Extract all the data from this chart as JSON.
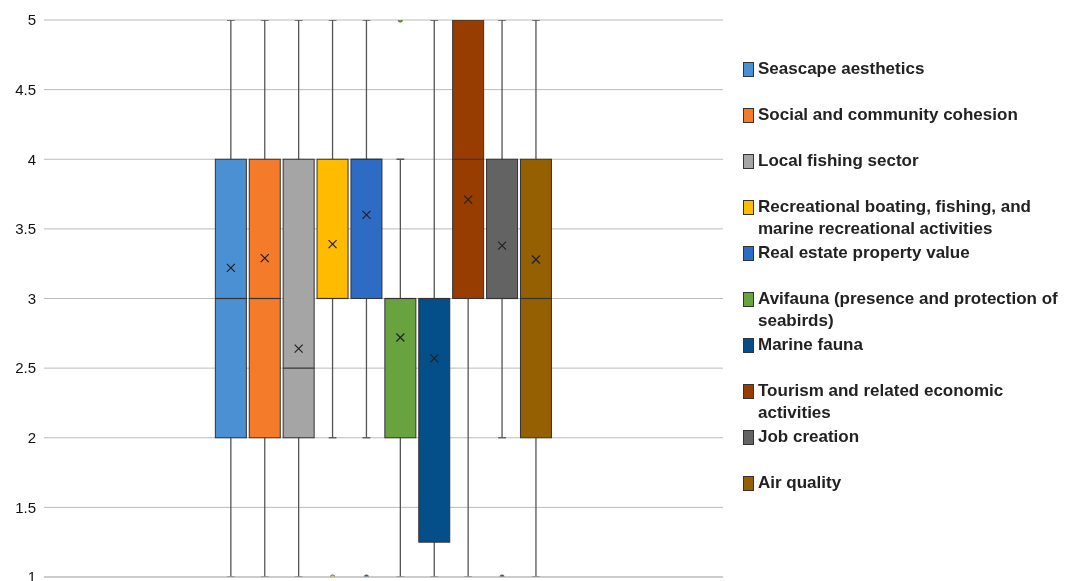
{
  "chart_data": {
    "type": "box",
    "categories": [
      null
    ],
    "series": [
      {
        "name": "Seascape aesthetics",
        "color": "#4a90d3",
        "boxes": [
          {
            "low": 1,
            "q1": 2,
            "median": 3,
            "q3": 4,
            "high": 5,
            "mean": 3.22
          }
        ]
      },
      {
        "name": "Social and community cohesion",
        "color": "#f37b29",
        "boxes": [
          {
            "low": 1,
            "q1": 2,
            "median": 3,
            "q3": 4,
            "high": 5,
            "mean": 3.29
          }
        ]
      },
      {
        "name": "Local fishing sector",
        "color": "#a5a5a5",
        "boxes": [
          {
            "low": 1,
            "q1": 2,
            "median": 2.5,
            "q3": 4,
            "high": 5,
            "mean": 2.64
          }
        ]
      },
      {
        "name": "Recreational boating, fishing, and marine recreational activities",
        "color": "#ffbb00",
        "boxes": [
          {
            "low": 2,
            "q1": 3,
            "median": 3,
            "q3": 4,
            "high": 5,
            "mean": 3.39,
            "outliers": [
              1
            ]
          }
        ]
      },
      {
        "name": "Real estate property value",
        "color": "#2e6bc4",
        "boxes": [
          {
            "low": 2,
            "q1": 3,
            "median": 4,
            "q3": 4,
            "high": 5,
            "mean": 3.6,
            "outliers": [
              1
            ]
          }
        ]
      },
      {
        "name": "Avifauna (presence and protection of seabirds)",
        "color": "#69a33f",
        "boxes": [
          {
            "low": 1,
            "q1": 2,
            "median": 3,
            "q3": 3,
            "high": 4,
            "mean": 2.72,
            "outliers": [
              5
            ]
          }
        ]
      },
      {
        "name": "Marine fauna",
        "color": "#044e8a",
        "boxes": [
          {
            "low": 1,
            "q1": 1.25,
            "median": 3,
            "q3": 3,
            "high": 5,
            "mean": 2.57
          }
        ]
      },
      {
        "name": "Tourism and related economic activities",
        "color": "#983d02",
        "boxes": [
          {
            "low": 1,
            "q1": 3,
            "median": 4,
            "q3": 5,
            "high": 5,
            "mean": 3.71
          }
        ]
      },
      {
        "name": "Job creation",
        "color": "#636363",
        "boxes": [
          {
            "low": 2,
            "q1": 3,
            "median": 3,
            "q3": 4,
            "high": 5,
            "mean": 3.38,
            "outliers": [
              1
            ]
          }
        ]
      },
      {
        "name": "Air quality",
        "color": "#956002",
        "boxes": [
          {
            "low": 1,
            "q1": 2,
            "median": 3,
            "q3": 4,
            "high": 5,
            "mean": 3.28
          }
        ]
      }
    ],
    "ylim": [
      1,
      5
    ],
    "yticks": [
      1,
      1.5,
      2,
      2.5,
      3,
      3.5,
      4,
      4.5,
      5
    ],
    "grid": "y",
    "legend": "right",
    "tick_labels": "y"
  }
}
